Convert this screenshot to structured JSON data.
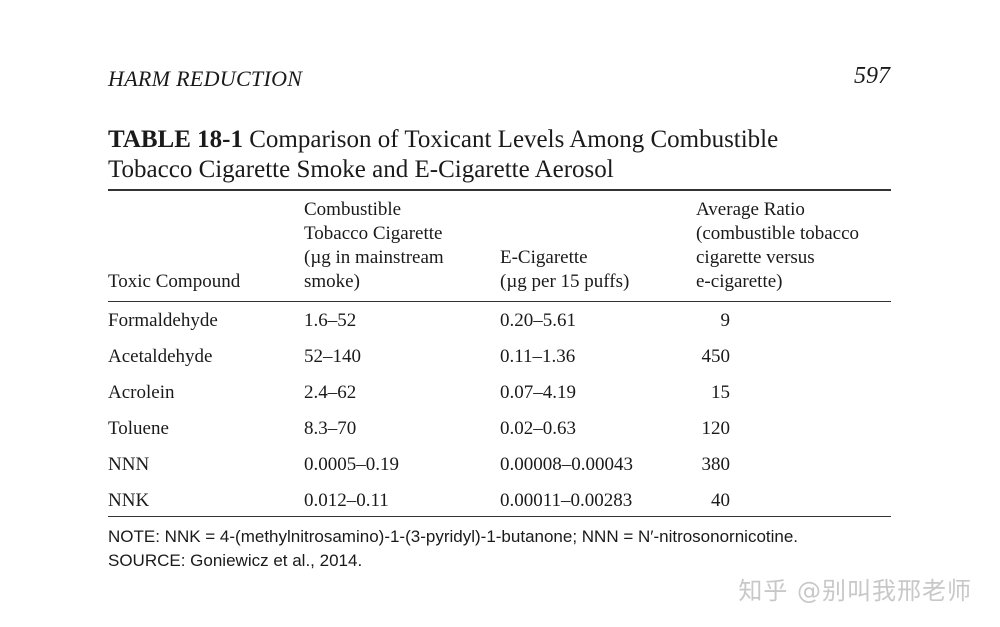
{
  "header": {
    "running_head": "HARM REDUCTION",
    "page_number": "597"
  },
  "table": {
    "label": "TABLE 18-1",
    "title_line1": "Comparison of Toxicant Levels Among Combustible",
    "title_line2": "Tobacco Cigarette Smoke and E-Cigarette Aerosol",
    "columns": [
      "Toxic Compound",
      "Combustible\nTobacco Cigarette\n(µg in mainstream\nsmoke)",
      "E-Cigarette\n(µg per 15 puffs)",
      "Average Ratio\n(combustible tobacco\ncigarette versus\ne-cigarette)"
    ],
    "rows": [
      {
        "compound": "Formaldehyde",
        "combustible": "1.6–52",
        "ecig": "0.20–5.61",
        "ratio": "9"
      },
      {
        "compound": "Acetaldehyde",
        "combustible": "52–140",
        "ecig": "0.11–1.36",
        "ratio": "450"
      },
      {
        "compound": "Acrolein",
        "combustible": "2.4–62",
        "ecig": "0.07–4.19",
        "ratio": "15"
      },
      {
        "compound": "Toluene",
        "combustible": "8.3–70",
        "ecig": "0.02–0.63",
        "ratio": "120"
      },
      {
        "compound": "NNN",
        "combustible": "0.0005–0.19",
        "ecig": "0.00008–0.00043",
        "ratio": "380"
      },
      {
        "compound": "NNK",
        "combustible": "0.012–0.11",
        "ecig": "0.00011–0.00283",
        "ratio": "40"
      }
    ],
    "note": "NOTE: NNK = 4-(methylnitrosamino)-1-(3-pyridyl)-1-butanone; NNN = N′-nitrosonornicotine.",
    "source": "SOURCE: Goniewicz et al., 2014."
  },
  "watermark": "知乎 @别叫我邢老师"
}
